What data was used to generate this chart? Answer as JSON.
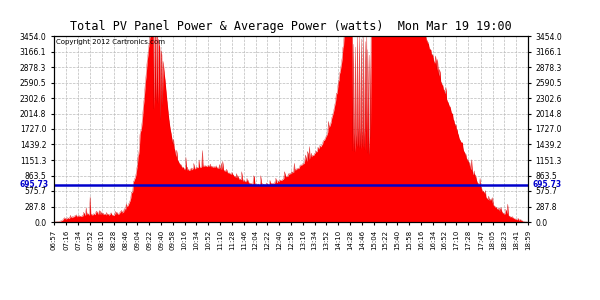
{
  "title": "Total PV Panel Power & Average Power (watts)  Mon Mar 19 19:00",
  "copyright": "Copyright 2012 Cartronics.com",
  "average_power": 695.73,
  "y_max": 3454.0,
  "y_ticks": [
    0.0,
    287.8,
    575.7,
    863.5,
    1151.3,
    1439.2,
    1727.0,
    2014.8,
    2302.6,
    2590.5,
    2878.3,
    3166.1,
    3454.0
  ],
  "background_color": "#ffffff",
  "fill_color": "#ff0000",
  "line_color": "#cc0000",
  "avg_line_color": "#0000cc",
  "grid_color": "#bbbbbb",
  "x_tick_labels": [
    "06:57",
    "07:16",
    "07:34",
    "07:52",
    "08:10",
    "08:28",
    "08:46",
    "09:04",
    "09:22",
    "09:40",
    "09:58",
    "10:16",
    "10:34",
    "10:52",
    "11:10",
    "11:28",
    "11:46",
    "12:04",
    "12:22",
    "12:40",
    "12:58",
    "13:16",
    "13:34",
    "13:52",
    "14:10",
    "14:28",
    "14:46",
    "15:04",
    "15:22",
    "15:40",
    "15:58",
    "16:16",
    "16:34",
    "16:52",
    "17:10",
    "17:28",
    "17:47",
    "18:05",
    "18:23",
    "18:41",
    "18:59"
  ]
}
